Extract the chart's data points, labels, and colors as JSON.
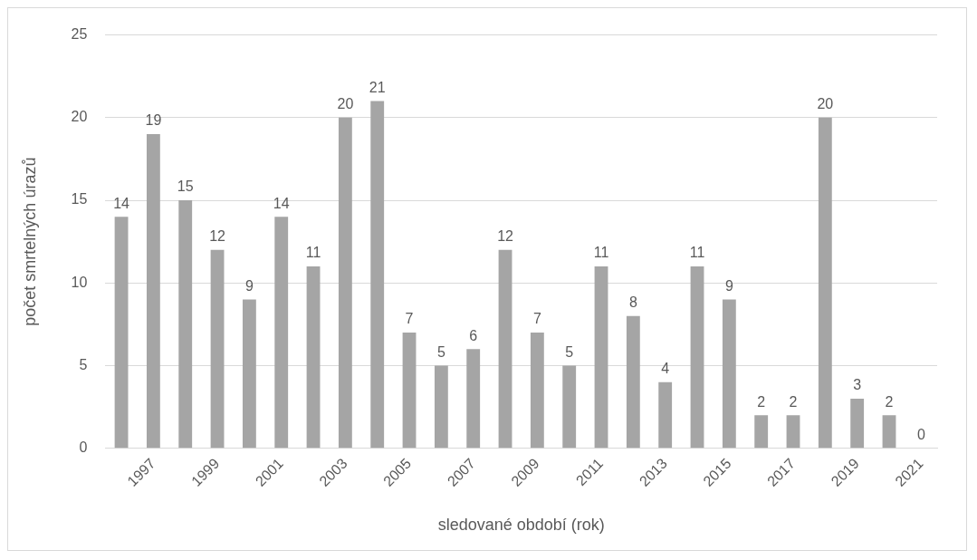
{
  "chart_data": {
    "type": "bar",
    "xlabel": "sledované období (rok)",
    "ylabel": "počet smrtelných úrazů",
    "categories": [
      null,
      "1997",
      null,
      "1999",
      null,
      "2001",
      null,
      "2003",
      null,
      "2005",
      null,
      "2007",
      null,
      "2009",
      null,
      "2011",
      null,
      "2013",
      null,
      "2015",
      null,
      "2017",
      null,
      "2019",
      null,
      "2021"
    ],
    "values": [
      14,
      19,
      15,
      12,
      9,
      14,
      11,
      20,
      21,
      7,
      5,
      6,
      12,
      7,
      5,
      11,
      8,
      4,
      11,
      9,
      2,
      2,
      20,
      3,
      2,
      0
    ],
    "color": "#a5a5a5",
    "ylim": [
      0,
      25
    ],
    "yticks": [
      0,
      5,
      10,
      15,
      20,
      25
    ],
    "grid": "y",
    "legend": false,
    "data_labels": true
  }
}
